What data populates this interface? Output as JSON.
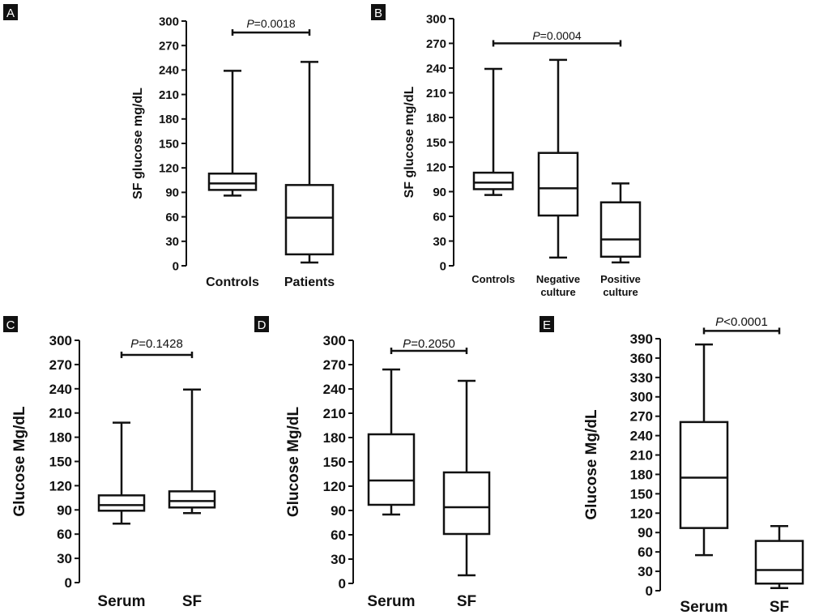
{
  "chart_data": [
    {
      "panel": "A",
      "type": "box",
      "ylabel": "SF glucose mg/dL",
      "ylim": [
        0,
        300
      ],
      "yticks": [
        0,
        30,
        60,
        90,
        120,
        150,
        180,
        210,
        240,
        270,
        300
      ],
      "tick_labels": [
        "0",
        "30",
        "60",
        "90",
        "120",
        "150",
        "180",
        "210",
        "240",
        "270",
        "300"
      ],
      "categories": [
        [
          "Controls"
        ],
        [
          "Patients"
        ]
      ],
      "boxes": [
        {
          "min": 86,
          "q1": 93,
          "median": 101,
          "q3": 113,
          "max": 239
        },
        {
          "min": 4,
          "q1": 14,
          "median": 59,
          "q3": 99,
          "max": 250
        }
      ],
      "comparison": {
        "prefix": "P",
        "text": "=0.0018",
        "y": 286,
        "from": 0,
        "to": 1
      }
    },
    {
      "panel": "B",
      "type": "box",
      "ylabel": "SF glucose mg/dL",
      "ylim": [
        0,
        300
      ],
      "yticks": [
        0,
        30,
        60,
        90,
        120,
        150,
        180,
        210,
        240,
        270,
        300
      ],
      "tick_labels": [
        "0",
        "30",
        "60",
        "90",
        "120",
        "150",
        "180",
        "210",
        "240",
        "270",
        "300"
      ],
      "categories": [
        [
          "Controls"
        ],
        [
          "Negative",
          "culture"
        ],
        [
          "Positive",
          "culture"
        ]
      ],
      "boxes": [
        {
          "min": 86,
          "q1": 93,
          "median": 101,
          "q3": 113,
          "max": 239
        },
        {
          "min": 10,
          "q1": 61,
          "median": 94,
          "q3": 137,
          "max": 250
        },
        {
          "min": 4,
          "q1": 11,
          "median": 32,
          "q3": 77,
          "max": 100
        }
      ],
      "comparison": {
        "prefix": "P",
        "text": "=0.0004",
        "y": 270,
        "from": 0,
        "to": 2
      }
    },
    {
      "panel": "C",
      "type": "box",
      "ylabel": "Glucose Mg/dL",
      "ylim": [
        0,
        300
      ],
      "yticks": [
        0,
        30,
        60,
        90,
        120,
        150,
        180,
        210,
        240,
        270,
        300
      ],
      "tick_labels": [
        "0",
        "30",
        "60",
        "90",
        "120",
        "150",
        "180",
        "210",
        "240",
        "270",
        "300"
      ],
      "categories": [
        [
          "Serum"
        ],
        [
          "SF"
        ]
      ],
      "boxes": [
        {
          "min": 73,
          "q1": 89,
          "median": 96,
          "q3": 108,
          "max": 198
        },
        {
          "min": 86,
          "q1": 93,
          "median": 101,
          "q3": 113,
          "max": 239
        }
      ],
      "comparison": {
        "prefix": "P",
        "text": "=0.1428",
        "y": 282,
        "from": 0,
        "to": 1
      }
    },
    {
      "panel": "D",
      "type": "box",
      "ylabel": "Glucose Mg/dL",
      "ylim": [
        0,
        300
      ],
      "yticks": [
        0,
        30,
        60,
        90,
        120,
        150,
        180,
        210,
        240,
        270,
        300
      ],
      "tick_labels": [
        "0",
        "30",
        "60",
        "90",
        "120",
        "150",
        "180",
        "210",
        "240",
        "270",
        "300"
      ],
      "categories": [
        [
          "Serum"
        ],
        [
          "SF"
        ]
      ],
      "boxes": [
        {
          "min": 85,
          "q1": 97,
          "median": 127,
          "q3": 184,
          "max": 264
        },
        {
          "min": 10,
          "q1": 61,
          "median": 94,
          "q3": 137,
          "max": 250
        }
      ],
      "comparison": {
        "prefix": "P",
        "text": "=0.2050",
        "y": 287,
        "from": 0,
        "to": 1
      }
    },
    {
      "panel": "E",
      "type": "box",
      "ylabel": "Glucose Mg/dL",
      "ylim": [
        0,
        390
      ],
      "yticks": [
        0,
        30,
        60,
        90,
        120,
        150,
        180,
        210,
        240,
        270,
        300,
        330,
        360,
        390
      ],
      "tick_labels": [
        "0",
        "30",
        "60",
        "90",
        "120",
        "150",
        "180",
        "210",
        "240",
        "270",
        "300",
        "330",
        "360",
        "390"
      ],
      "categories": [
        [
          "Serum"
        ],
        [
          "SF"
        ]
      ],
      "boxes": [
        {
          "min": 55,
          "q1": 97,
          "median": 175,
          "q3": 261,
          "max": 381
        },
        {
          "min": 4,
          "q1": 11,
          "median": 32,
          "q3": 77,
          "max": 100
        }
      ],
      "comparison": {
        "prefix": "P",
        "text": "<0.0001",
        "y": 402,
        "from": 0,
        "to": 1
      }
    }
  ]
}
